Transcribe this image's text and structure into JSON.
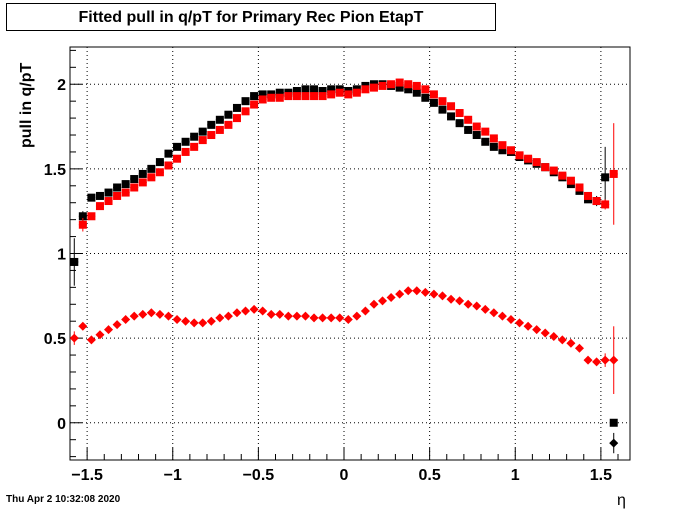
{
  "title": "Fitted pull in q/pT for Primary Rec Pion EtapT",
  "ylabel": "pull in q/pT",
  "xlabel": "η",
  "datestamp": "Thu Apr  2 10:32:08 2020",
  "chart_data": {
    "type": "scatter",
    "title": "Fitted pull in q/pT for Primary Rec Pion EtapT",
    "xlabel": "η",
    "ylabel": "pull in q/pT",
    "xlim": [
      -1.6,
      1.67
    ],
    "ylim": [
      -0.22,
      2.22
    ],
    "grid": true,
    "x_ticks": [
      -1.5,
      -1,
      -0.5,
      0,
      0.5,
      1,
      1.5
    ],
    "x_tick_labels": [
      "−1.5",
      "−1",
      "−0.5",
      "0",
      "0.5",
      "1",
      "1.5"
    ],
    "y_ticks": [
      0,
      0.5,
      1,
      1.5,
      2
    ],
    "y_tick_labels": [
      "0",
      "0.5",
      "1",
      "1.5",
      "2"
    ],
    "series": [
      {
        "color": "#000000",
        "marker": "square",
        "x": [
          -1.575,
          -1.525,
          -1.475,
          -1.425,
          -1.375,
          -1.325,
          -1.275,
          -1.225,
          -1.175,
          -1.125,
          -1.075,
          -1.025,
          -0.975,
          -0.925,
          -0.875,
          -0.825,
          -0.775,
          -0.725,
          -0.675,
          -0.625,
          -0.575,
          -0.525,
          -0.475,
          -0.425,
          -0.375,
          -0.325,
          -0.275,
          -0.225,
          -0.175,
          -0.125,
          -0.075,
          -0.025,
          0.025,
          0.075,
          0.125,
          0.175,
          0.225,
          0.275,
          0.325,
          0.375,
          0.425,
          0.475,
          0.525,
          0.575,
          0.625,
          0.675,
          0.725,
          0.775,
          0.825,
          0.875,
          0.925,
          0.975,
          1.025,
          1.075,
          1.125,
          1.175,
          1.225,
          1.275,
          1.325,
          1.375,
          1.425,
          1.475,
          1.525,
          1.575
        ],
        "y": [
          0.95,
          1.22,
          1.33,
          1.34,
          1.36,
          1.39,
          1.41,
          1.44,
          1.47,
          1.5,
          1.54,
          1.59,
          1.63,
          1.66,
          1.69,
          1.72,
          1.76,
          1.79,
          1.82,
          1.86,
          1.9,
          1.93,
          1.94,
          1.94,
          1.95,
          1.95,
          1.96,
          1.97,
          1.97,
          1.96,
          1.97,
          1.97,
          1.96,
          1.97,
          1.99,
          2.0,
          2.0,
          1.99,
          1.98,
          1.97,
          1.95,
          1.92,
          1.89,
          1.85,
          1.81,
          1.77,
          1.73,
          1.7,
          1.66,
          1.63,
          1.61,
          1.6,
          1.57,
          1.55,
          1.53,
          1.51,
          1.48,
          1.45,
          1.41,
          1.37,
          1.32,
          1.31,
          1.45,
          0
        ],
        "yerr": [
          0.14,
          0.03,
          0.02,
          0.02,
          0.02,
          0.02,
          0.02,
          0.02,
          0.02,
          0.02,
          0.02,
          0.02,
          0.02,
          0.02,
          0.02,
          0.02,
          0.02,
          0.02,
          0.02,
          0.02,
          0.02,
          0.02,
          0.02,
          0.02,
          0.02,
          0.02,
          0.02,
          0.02,
          0.02,
          0.02,
          0.02,
          0.02,
          0.02,
          0.02,
          0.02,
          0.02,
          0.02,
          0.02,
          0.02,
          0.02,
          0.02,
          0.02,
          0.02,
          0.02,
          0.02,
          0.02,
          0.02,
          0.02,
          0.02,
          0.02,
          0.02,
          0.02,
          0.02,
          0.02,
          0.02,
          0.02,
          0.02,
          0.02,
          0.02,
          0.02,
          0.02,
          0.03,
          0.18,
          0
        ]
      },
      {
        "color": "#ff0000",
        "marker": "square",
        "x": [
          -1.525,
          -1.475,
          -1.425,
          -1.375,
          -1.325,
          -1.275,
          -1.225,
          -1.175,
          -1.125,
          -1.075,
          -1.025,
          -0.975,
          -0.925,
          -0.875,
          -0.825,
          -0.775,
          -0.725,
          -0.675,
          -0.625,
          -0.575,
          -0.525,
          -0.475,
          -0.425,
          -0.375,
          -0.325,
          -0.275,
          -0.225,
          -0.175,
          -0.125,
          -0.075,
          -0.025,
          0.025,
          0.075,
          0.125,
          0.175,
          0.225,
          0.275,
          0.325,
          0.375,
          0.425,
          0.475,
          0.525,
          0.575,
          0.625,
          0.675,
          0.725,
          0.775,
          0.825,
          0.875,
          0.925,
          0.975,
          1.025,
          1.075,
          1.125,
          1.175,
          1.225,
          1.275,
          1.325,
          1.375,
          1.425,
          1.475,
          1.525,
          1.575
        ],
        "y": [
          1.17,
          1.22,
          1.28,
          1.31,
          1.34,
          1.36,
          1.39,
          1.42,
          1.45,
          1.48,
          1.52,
          1.56,
          1.6,
          1.63,
          1.67,
          1.7,
          1.73,
          1.76,
          1.8,
          1.84,
          1.88,
          1.91,
          1.92,
          1.92,
          1.93,
          1.93,
          1.93,
          1.93,
          1.93,
          1.94,
          1.95,
          1.94,
          1.95,
          1.97,
          1.98,
          1.99,
          2.0,
          2.01,
          2.0,
          1.99,
          1.97,
          1.94,
          1.9,
          1.87,
          1.83,
          1.79,
          1.75,
          1.72,
          1.68,
          1.64,
          1.61,
          1.58,
          1.56,
          1.54,
          1.51,
          1.49,
          1.46,
          1.43,
          1.39,
          1.34,
          1.31,
          1.29,
          1.47
        ],
        "yerr": [
          0.04,
          0.02,
          0.02,
          0.02,
          0.02,
          0.02,
          0.02,
          0.02,
          0.02,
          0.02,
          0.02,
          0.02,
          0.02,
          0.02,
          0.02,
          0.02,
          0.02,
          0.02,
          0.02,
          0.02,
          0.02,
          0.02,
          0.02,
          0.02,
          0.02,
          0.02,
          0.02,
          0.02,
          0.02,
          0.02,
          0.02,
          0.02,
          0.02,
          0.02,
          0.02,
          0.02,
          0.02,
          0.02,
          0.02,
          0.02,
          0.02,
          0.02,
          0.02,
          0.02,
          0.02,
          0.02,
          0.02,
          0.02,
          0.02,
          0.02,
          0.02,
          0.02,
          0.02,
          0.02,
          0.02,
          0.02,
          0.02,
          0.02,
          0.02,
          0.02,
          0.02,
          0.03,
          0.3
        ]
      },
      {
        "color": "#000000",
        "marker": "diamond",
        "x": [
          1.575
        ],
        "y": [
          -0.12
        ],
        "yerr": [
          0.06
        ]
      },
      {
        "color": "#ff0000",
        "marker": "diamond",
        "x": [
          -1.575,
          -1.525,
          -1.475,
          -1.425,
          -1.375,
          -1.325,
          -1.275,
          -1.225,
          -1.175,
          -1.125,
          -1.075,
          -1.025,
          -0.975,
          -0.925,
          -0.875,
          -0.825,
          -0.775,
          -0.725,
          -0.675,
          -0.625,
          -0.575,
          -0.525,
          -0.475,
          -0.425,
          -0.375,
          -0.325,
          -0.275,
          -0.225,
          -0.175,
          -0.125,
          -0.075,
          -0.025,
          0.025,
          0.075,
          0.125,
          0.175,
          0.225,
          0.275,
          0.325,
          0.375,
          0.425,
          0.475,
          0.525,
          0.575,
          0.625,
          0.675,
          0.725,
          0.775,
          0.825,
          0.875,
          0.925,
          0.975,
          1.025,
          1.075,
          1.125,
          1.175,
          1.225,
          1.275,
          1.325,
          1.375,
          1.425,
          1.475,
          1.525,
          1.575
        ],
        "y": [
          0.5,
          0.57,
          0.49,
          0.52,
          0.55,
          0.58,
          0.61,
          0.63,
          0.64,
          0.65,
          0.64,
          0.63,
          0.61,
          0.6,
          0.59,
          0.59,
          0.6,
          0.62,
          0.63,
          0.65,
          0.66,
          0.67,
          0.66,
          0.64,
          0.64,
          0.63,
          0.63,
          0.63,
          0.62,
          0.62,
          0.62,
          0.62,
          0.61,
          0.63,
          0.66,
          0.7,
          0.72,
          0.74,
          0.76,
          0.78,
          0.78,
          0.77,
          0.76,
          0.75,
          0.73,
          0.72,
          0.7,
          0.69,
          0.67,
          0.65,
          0.63,
          0.61,
          0.59,
          0.57,
          0.55,
          0.53,
          0.51,
          0.49,
          0.47,
          0.44,
          0.37,
          0.36,
          0.37,
          0.37
        ],
        "yerr": [
          0.04,
          0.01,
          0.01,
          0.01,
          0.01,
          0.01,
          0.01,
          0.01,
          0.01,
          0.01,
          0.01,
          0.01,
          0.01,
          0.01,
          0.01,
          0.01,
          0.01,
          0.01,
          0.01,
          0.01,
          0.01,
          0.01,
          0.01,
          0.01,
          0.01,
          0.01,
          0.01,
          0.01,
          0.01,
          0.01,
          0.01,
          0.01,
          0.01,
          0.01,
          0.01,
          0.01,
          0.01,
          0.01,
          0.01,
          0.01,
          0.01,
          0.01,
          0.01,
          0.01,
          0.01,
          0.01,
          0.01,
          0.01,
          0.01,
          0.01,
          0.01,
          0.01,
          0.01,
          0.01,
          0.01,
          0.01,
          0.01,
          0.01,
          0.01,
          0.01,
          0.02,
          0.02,
          0.04,
          0.2
        ]
      }
    ]
  }
}
